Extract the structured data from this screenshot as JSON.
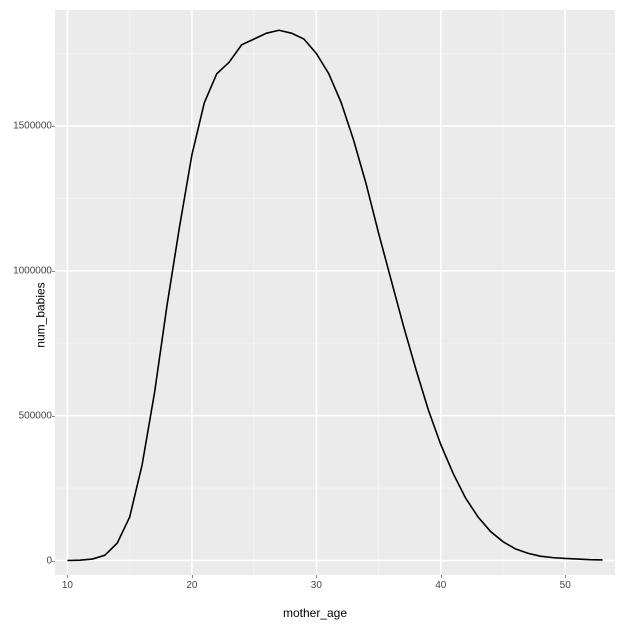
{
  "chart": {
    "type": "line",
    "xlabel": "mother_age",
    "ylabel": "num_babies",
    "xlim": [
      9,
      54
    ],
    "ylim": [
      -50000,
      1900000
    ],
    "xticks": [
      10,
      20,
      30,
      40,
      50
    ],
    "yticks": [
      0,
      500000,
      1000000,
      1500000
    ],
    "xtick_labels": [
      "10",
      "20",
      "30",
      "40",
      "50"
    ],
    "ytick_labels": [
      "0",
      "500000",
      "1000000",
      "1500000"
    ],
    "background_color": "#ebebeb",
    "grid_major_color": "#ffffff",
    "grid_minor_color": "#f3f3f3",
    "grid_major_width": 1.5,
    "grid_minor_width": 0.8,
    "line_color": "#000000",
    "line_width": 1.6,
    "label_fontsize": 12,
    "tick_fontsize": 10,
    "x_minor_ticks": [
      15,
      25,
      35,
      45
    ],
    "y_minor_ticks": [
      250000,
      750000,
      1250000,
      1750000
    ],
    "data": {
      "x": [
        10,
        11,
        12,
        13,
        14,
        15,
        16,
        17,
        18,
        19,
        20,
        21,
        22,
        23,
        24,
        25,
        26,
        27,
        28,
        29,
        30,
        31,
        32,
        33,
        34,
        35,
        36,
        37,
        38,
        39,
        40,
        41,
        42,
        43,
        44,
        45,
        46,
        47,
        48,
        49,
        50,
        51,
        52,
        53
      ],
      "y": [
        0,
        1000,
        5000,
        18000,
        60000,
        150000,
        330000,
        580000,
        880000,
        1150000,
        1400000,
        1580000,
        1680000,
        1720000,
        1780000,
        1800000,
        1820000,
        1830000,
        1820000,
        1800000,
        1750000,
        1680000,
        1580000,
        1450000,
        1300000,
        1130000,
        970000,
        810000,
        660000,
        520000,
        400000,
        300000,
        215000,
        150000,
        100000,
        65000,
        40000,
        25000,
        15000,
        10000,
        7000,
        5000,
        3000,
        2000
      ]
    }
  }
}
